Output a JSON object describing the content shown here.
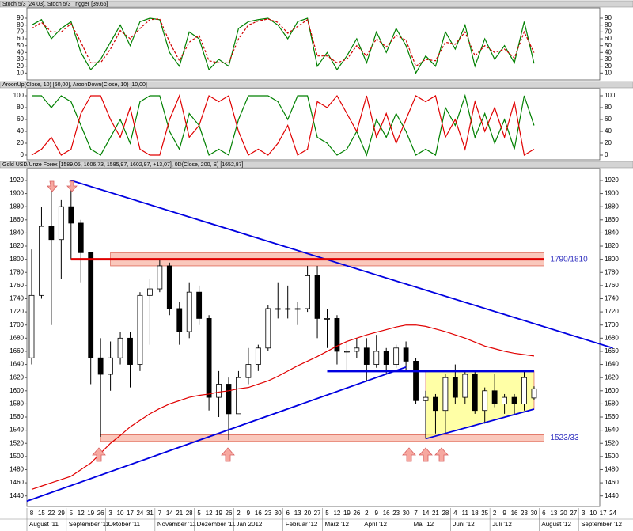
{
  "chart_data": [
    {
      "type": "line",
      "title": "Stoch 5/3 [24,03],  Stoch 5/3 Trigger [39,65]",
      "ylim": [
        0,
        105
      ],
      "yticks": [
        10,
        20,
        30,
        40,
        50,
        60,
        70,
        80,
        90
      ],
      "series": [
        {
          "name": "Stoch 5/3",
          "color": "#008000",
          "dash": false,
          "values": [
            80,
            88,
            60,
            75,
            85,
            40,
            15,
            30,
            55,
            80,
            50,
            85,
            90,
            88,
            40,
            20,
            70,
            60,
            15,
            30,
            20,
            75,
            85,
            88,
            90,
            80,
            60,
            85,
            90,
            20,
            40,
            15,
            35,
            60,
            25,
            70,
            40,
            75,
            50,
            10,
            35,
            20,
            70,
            45,
            80,
            20,
            60,
            30,
            50,
            25,
            85,
            24,
            null,
            null,
            null,
            null,
            null,
            null,
            null,
            null
          ]
        },
        {
          "name": "Stoch 5/3 Trigger",
          "color": "#d00000",
          "dash": true,
          "values": [
            75,
            84,
            70,
            70,
            82,
            55,
            25,
            25,
            45,
            72,
            60,
            75,
            88,
            89,
            55,
            28,
            55,
            65,
            28,
            25,
            25,
            60,
            80,
            86,
            89,
            84,
            68,
            78,
            88,
            35,
            35,
            25,
            30,
            50,
            35,
            60,
            48,
            65,
            58,
            20,
            30,
            28,
            55,
            52,
            70,
            35,
            50,
            40,
            45,
            32,
            70,
            39.65,
            null,
            null,
            null,
            null,
            null,
            null,
            null,
            null
          ]
        }
      ]
    },
    {
      "type": "line",
      "title": "AroonUp(Close, 10) [50,00],  AroonDown(Close, 10) [10,00]",
      "ylim": [
        -8,
        112
      ],
      "yticks": [
        0,
        20,
        40,
        60,
        80,
        100
      ],
      "series": [
        {
          "name": "AroonUp(Close, 10)",
          "color": "#008000",
          "dash": false,
          "values": [
            100,
            100,
            80,
            100,
            90,
            50,
            10,
            0,
            30,
            60,
            20,
            90,
            100,
            100,
            40,
            10,
            70,
            50,
            0,
            10,
            0,
            60,
            100,
            100,
            100,
            90,
            60,
            100,
            100,
            30,
            20,
            0,
            10,
            40,
            0,
            60,
            30,
            70,
            40,
            0,
            10,
            0,
            80,
            50,
            100,
            30,
            70,
            20,
            60,
            10,
            100,
            50,
            null,
            null,
            null,
            null,
            null,
            null,
            null,
            null
          ]
        },
        {
          "name": "AroonDown(Close, 10)",
          "color": "#e00000",
          "dash": false,
          "values": [
            0,
            10,
            30,
            0,
            10,
            70,
            100,
            100,
            60,
            30,
            80,
            10,
            0,
            0,
            60,
            100,
            30,
            50,
            100,
            90,
            100,
            40,
            0,
            10,
            0,
            20,
            50,
            0,
            10,
            90,
            80,
            100,
            70,
            40,
            100,
            30,
            70,
            20,
            60,
            100,
            90,
            100,
            30,
            60,
            10,
            90,
            40,
            80,
            30,
            90,
            0,
            10,
            null,
            null,
            null,
            null,
            null,
            null,
            null,
            null
          ]
        }
      ]
    },
    {
      "type": "candlestick",
      "title": "Gold USD/Unze Forex [1589,05, 1606,73, 1585,97, 1602,97, +13,07],  0D(Close, 200, S) [1652,87]",
      "ylim": [
        1424,
        1938
      ],
      "yticks": [
        1440,
        1460,
        1480,
        1500,
        1520,
        1540,
        1560,
        1580,
        1600,
        1620,
        1640,
        1660,
        1680,
        1700,
        1720,
        1740,
        1760,
        1780,
        1800,
        1820,
        1840,
        1860,
        1880,
        1900,
        1920
      ],
      "categories": [
        "8",
        "15",
        "22",
        "29",
        "5",
        "12",
        "19",
        "26",
        "3",
        "10",
        "17",
        "24",
        "31",
        "7",
        "14",
        "21",
        "28",
        "5",
        "12",
        "19",
        "26",
        "2",
        "9",
        "16",
        "23",
        "30",
        "6",
        "13",
        "20",
        "27",
        "5",
        "12",
        "19",
        "26",
        "2",
        "9",
        "16",
        "23",
        "30",
        "7",
        "14",
        "21",
        "28",
        "4",
        "11",
        "18",
        "25",
        "2",
        "9",
        "16",
        "23",
        "30",
        "6",
        "13",
        "20",
        "27",
        "3",
        "10",
        "17",
        "24"
      ],
      "months": [
        "August '11",
        "September '11",
        "Oktober '11",
        "November '11",
        "Dezember '11",
        "Jan 2012",
        "Februar '12",
        "März '12",
        "April '12",
        "Mai '12",
        "Juni '12",
        "Juli '12",
        "August '12",
        "September '12"
      ],
      "open": [
        1650,
        1745,
        1850,
        1830,
        1880,
        1855,
        1810,
        1650,
        1625,
        1650,
        1680,
        1640,
        1745,
        1755,
        1790,
        1725,
        1690,
        1750,
        1710,
        1590,
        1610,
        1565,
        1620,
        1640,
        1665,
        1725,
        1725,
        1725,
        1725,
        1775,
        1710,
        1710,
        1660,
        1660,
        1665,
        1640,
        1660,
        1640,
        1665,
        1645,
        1585,
        1590,
        1570,
        1620,
        1590,
        1625,
        1570,
        1600,
        1580,
        1590,
        1580,
        1589.05,
        null,
        null,
        null,
        null,
        null,
        null,
        null,
        null
      ],
      "high": [
        1815,
        1880,
        1912,
        1890,
        1920,
        1860,
        1810,
        1680,
        1675,
        1690,
        1690,
        1750,
        1770,
        1800,
        1795,
        1735,
        1765,
        1760,
        1715,
        1630,
        1620,
        1630,
        1665,
        1670,
        1730,
        1765,
        1760,
        1735,
        1790,
        1790,
        1725,
        1715,
        1675,
        1680,
        1680,
        1685,
        1665,
        1670,
        1675,
        1650,
        1600,
        1595,
        1625,
        1640,
        1630,
        1630,
        1605,
        1625,
        1595,
        1595,
        1630,
        1606.73,
        null,
        null,
        null,
        null,
        null,
        null,
        null,
        null
      ],
      "low": [
        1640,
        1740,
        1700,
        1770,
        1800,
        1765,
        1610,
        1530,
        1600,
        1640,
        1605,
        1630,
        1670,
        1750,
        1715,
        1670,
        1680,
        1700,
        1570,
        1560,
        1525,
        1565,
        1610,
        1630,
        1660,
        1710,
        1710,
        1700,
        1720,
        1680,
        1665,
        1640,
        1630,
        1650,
        1615,
        1635,
        1625,
        1635,
        1630,
        1580,
        1527,
        1535,
        1535,
        1580,
        1580,
        1565,
        1550,
        1575,
        1565,
        1565,
        1570,
        1585.97,
        null,
        null,
        null,
        null,
        null,
        null,
        null,
        null
      ],
      "close": [
        1745,
        1850,
        1830,
        1880,
        1855,
        1810,
        1650,
        1625,
        1650,
        1680,
        1640,
        1745,
        1755,
        1790,
        1725,
        1690,
        1750,
        1710,
        1590,
        1610,
        1565,
        1620,
        1640,
        1665,
        1725,
        1725,
        1725,
        1725,
        1775,
        1710,
        1710,
        1660,
        1660,
        1665,
        1640,
        1660,
        1640,
        1665,
        1645,
        1585,
        1590,
        1570,
        1620,
        1590,
        1625,
        1570,
        1600,
        1580,
        1590,
        1580,
        1620,
        1602.97,
        null,
        null,
        null,
        null,
        null,
        null,
        null,
        null
      ],
      "series": [
        {
          "name": "0D(Close, 200, S)",
          "color": "#e00000",
          "dash": false,
          "values": [
            1450,
            1455,
            1460,
            1465,
            1470,
            1480,
            1490,
            1505,
            1520,
            1532,
            1545,
            1555,
            1565,
            1573,
            1580,
            1585,
            1590,
            1593,
            1595,
            1598,
            1600,
            1603,
            1605,
            1610,
            1615,
            1622,
            1630,
            1638,
            1645,
            1652,
            1660,
            1668,
            1675,
            1680,
            1685,
            1689,
            1693,
            1697,
            1700,
            1700,
            1698,
            1694,
            1690,
            1685,
            1680,
            1674,
            1668,
            1664,
            1660,
            1657,
            1655,
            1652.87,
            null,
            null,
            null,
            null,
            null,
            null,
            null,
            null
          ]
        }
      ],
      "zones": [
        {
          "label": "1790/1810",
          "color": "#f8b0a0",
          "points": [
            [
              8,
              1790
            ],
            [
              8,
              1810
            ],
            [
              52,
              1810
            ],
            [
              52,
              1790
            ]
          ]
        },
        {
          "label": "1523/33",
          "color": "#f8b0a0",
          "points": [
            [
              7,
              1523
            ],
            [
              7,
              1533
            ],
            [
              52,
              1533
            ],
            [
              52,
              1523
            ]
          ]
        },
        {
          "color": "#ffff80",
          "points": [
            [
              40,
              1527
            ],
            [
              40,
              1630
            ],
            [
              51,
              1630
            ],
            [
              51,
              1572
            ]
          ]
        }
      ],
      "trendlines": [
        {
          "color": "#0000e0",
          "points": [
            [
              4,
              1920
            ],
            [
              59,
              1665
            ]
          ]
        },
        {
          "color": "#0000e0",
          "points": [
            [
              -0.5,
              1432
            ],
            [
              38,
              1636
            ]
          ]
        },
        {
          "color": "#0000e0",
          "points": [
            [
              30,
              1630
            ],
            [
              51,
              1630
            ]
          ]
        },
        {
          "color": "#e00000",
          "points": [
            [
              4,
              1800
            ],
            [
              52,
              1800
            ]
          ]
        },
        {
          "color": "#0000e0",
          "points": [
            [
              40,
              1527
            ],
            [
              51,
              1572
            ]
          ]
        }
      ]
    }
  ]
}
